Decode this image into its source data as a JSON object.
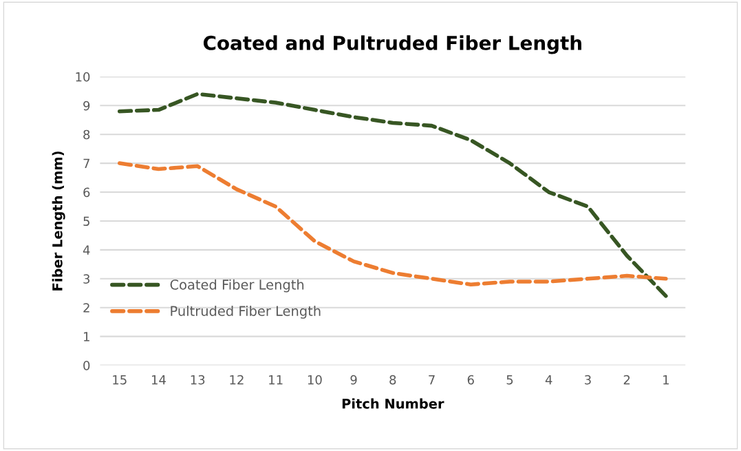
{
  "chart_data": {
    "type": "line",
    "title": "Coated and Pultruded Fiber Length",
    "xlabel": "Pitch Number",
    "ylabel": "Fiber Length (mm)",
    "categories": [
      "15",
      "14",
      "13",
      "12",
      "11",
      "10",
      "9",
      "8",
      "7",
      "6",
      "5",
      "4",
      "3",
      "2",
      "1"
    ],
    "series": [
      {
        "name": "Coated Fiber Length",
        "color": "#375623",
        "values": [
          8.8,
          8.85,
          9.4,
          9.25,
          9.1,
          8.85,
          8.6,
          8.4,
          8.3,
          7.8,
          7.0,
          6.0,
          5.5,
          3.8,
          2.4
        ]
      },
      {
        "name": "Pultruded Fiber Length",
        "color": "#ed7d31",
        "values": [
          7.0,
          6.8,
          6.9,
          6.1,
          5.5,
          4.3,
          3.6,
          3.2,
          3.0,
          2.8,
          2.9,
          2.9,
          3.0,
          3.1,
          3.0
        ]
      }
    ],
    "ylim": [
      0,
      10
    ],
    "yticks": [
      0,
      1,
      2,
      3,
      4,
      5,
      6,
      7,
      8,
      9,
      10
    ],
    "grid": "y",
    "legend": "bottom left",
    "line_style": "dashed",
    "marker": "none"
  }
}
